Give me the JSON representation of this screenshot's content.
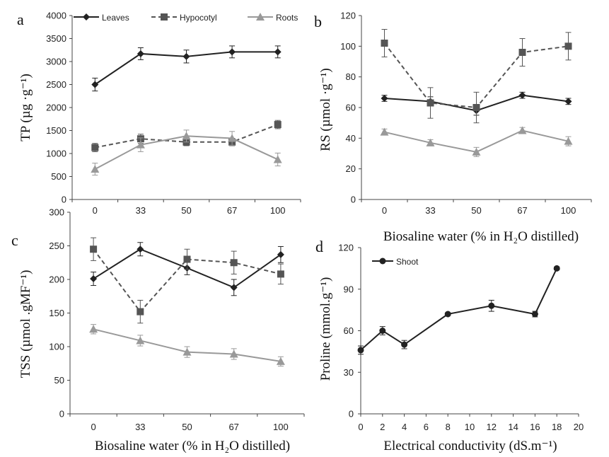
{
  "chart_data": [
    {
      "panel": "a",
      "type": "line",
      "xlabel": "",
      "ylabel": "TP (µg ·g⁻¹)",
      "categories": [
        "0",
        "33",
        "50",
        "67",
        "100"
      ],
      "ylim": [
        0,
        4000
      ],
      "yticks": [
        0,
        500,
        1000,
        1500,
        2000,
        2500,
        3000,
        3500,
        4000
      ],
      "legend_position": "top",
      "series": [
        {
          "name": "Leaves",
          "values": [
            2500,
            3170,
            3110,
            3210,
            3210
          ],
          "errors": [
            140,
            130,
            140,
            130,
            130
          ],
          "marker": "diamond",
          "color": "#222222",
          "dash": "solid"
        },
        {
          "name": "Hypocotyl",
          "values": [
            1130,
            1320,
            1250,
            1250,
            1630
          ],
          "errors": [
            90,
            100,
            80,
            80,
            90
          ],
          "marker": "square",
          "color": "#555555",
          "dash": "dashed"
        },
        {
          "name": "Roots",
          "values": [
            660,
            1190,
            1380,
            1330,
            870
          ],
          "errors": [
            130,
            150,
            130,
            150,
            140
          ],
          "marker": "triangle",
          "color": "#999999",
          "dash": "solid"
        }
      ]
    },
    {
      "panel": "b",
      "type": "line",
      "xlabel": "Biosaline water (% in H₂O distilled)",
      "ylabel": "RS (µmol ·g⁻¹)",
      "categories": [
        "0",
        "33",
        "50",
        "67",
        "100"
      ],
      "ylim": [
        0,
        120
      ],
      "yticks": [
        0,
        20,
        40,
        60,
        80,
        100,
        120
      ],
      "series": [
        {
          "name": "Leaves",
          "values": [
            66,
            64,
            58,
            68,
            64
          ],
          "errors": [
            2,
            3,
            3,
            2,
            2
          ],
          "marker": "diamond",
          "color": "#222222",
          "dash": "solid"
        },
        {
          "name": "Hypocotyl",
          "values": [
            102,
            63,
            60,
            96,
            100
          ],
          "errors": [
            9,
            10,
            10,
            9,
            9
          ],
          "marker": "square",
          "color": "#555555",
          "dash": "dashed"
        },
        {
          "name": "Roots",
          "values": [
            44,
            37,
            31,
            45,
            38
          ],
          "errors": [
            2,
            2,
            3,
            2,
            3
          ],
          "marker": "triangle",
          "color": "#999999",
          "dash": "solid"
        }
      ]
    },
    {
      "panel": "c",
      "type": "line",
      "xlabel": "Biosaline water (% in H₂O distilled)",
      "ylabel": "TSS (µmol .gMF⁻¹)",
      "categories": [
        "0",
        "33",
        "50",
        "67",
        "100"
      ],
      "ylim": [
        0,
        300
      ],
      "yticks": [
        0,
        50,
        100,
        150,
        200,
        250,
        300
      ],
      "series": [
        {
          "name": "Leaves",
          "values": [
            201,
            245,
            217,
            188,
            237
          ],
          "errors": [
            10,
            10,
            10,
            12,
            12
          ],
          "marker": "diamond",
          "color": "#222222",
          "dash": "solid"
        },
        {
          "name": "Hypocotyl",
          "values": [
            245,
            152,
            230,
            225,
            208
          ],
          "errors": [
            17,
            17,
            15,
            17,
            15
          ],
          "marker": "square",
          "color": "#555555",
          "dash": "dashed"
        },
        {
          "name": "Roots",
          "values": [
            126,
            109,
            92,
            89,
            78
          ],
          "errors": [
            7,
            8,
            8,
            8,
            7
          ],
          "marker": "triangle",
          "color": "#999999",
          "dash": "solid"
        }
      ]
    },
    {
      "panel": "d",
      "type": "scatter",
      "xlabel": "Electrical conductivity (dS.m⁻¹)",
      "ylabel": "Proline  (mmol.g⁻¹)",
      "xlim": [
        0,
        20
      ],
      "xticks": [
        0,
        2,
        4,
        6,
        8,
        10,
        12,
        14,
        16,
        18,
        20
      ],
      "ylim": [
        0,
        120
      ],
      "yticks": [
        0,
        30,
        60,
        90,
        120
      ],
      "legend_position": "top-left",
      "series": [
        {
          "name": "Shoot",
          "x": [
            0,
            2,
            4,
            8,
            12,
            16,
            18
          ],
          "values": [
            46,
            60,
            50,
            72,
            78,
            72,
            105
          ],
          "errors": [
            3,
            3,
            3,
            1,
            4,
            2,
            1
          ],
          "marker": "circle",
          "color": "#222222",
          "dash": "solid"
        }
      ]
    }
  ]
}
